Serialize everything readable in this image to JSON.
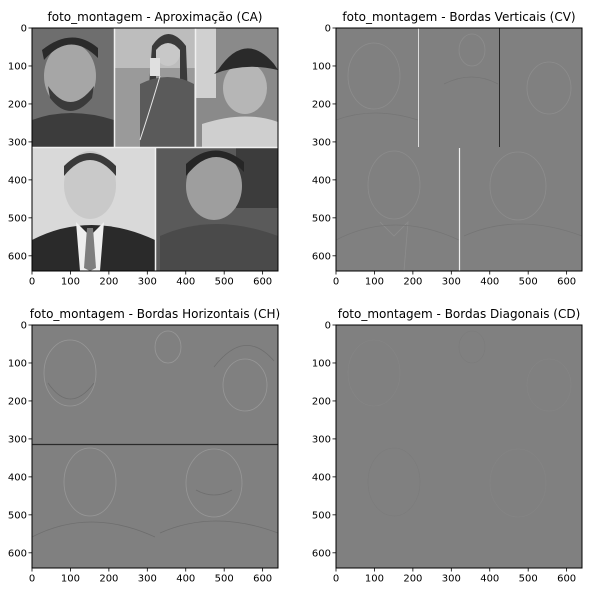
{
  "figure": {
    "panels": [
      {
        "id": "ca",
        "title": "foto_montagem - Aproximação (CA)",
        "kind": "photo-grayscale"
      },
      {
        "id": "cv",
        "title": "foto_montagem - Bordas Verticais (CV)",
        "kind": "edges-vertical"
      },
      {
        "id": "ch",
        "title": "foto_montagem - Bordas Horizontais (CH)",
        "kind": "edges-horizontal"
      },
      {
        "id": "cd",
        "title": "foto_montagem - Bordas Diagonais (CD)",
        "kind": "edges-diagonal"
      }
    ],
    "x_ticks": [
      "0",
      "100",
      "200",
      "300",
      "400",
      "500",
      "600"
    ],
    "y_ticks": [
      "0",
      "100",
      "200",
      "300",
      "400",
      "500",
      "600"
    ],
    "axis_range": [
      0,
      640
    ],
    "colors": {
      "edge_background": "#808080",
      "edge_dark": "#6a6a6a",
      "edge_light": "#a0a0a0",
      "photo_dark": "#2a2a2a",
      "photo_mid": "#8a8a8a",
      "photo_light": "#d8d8d8"
    }
  }
}
